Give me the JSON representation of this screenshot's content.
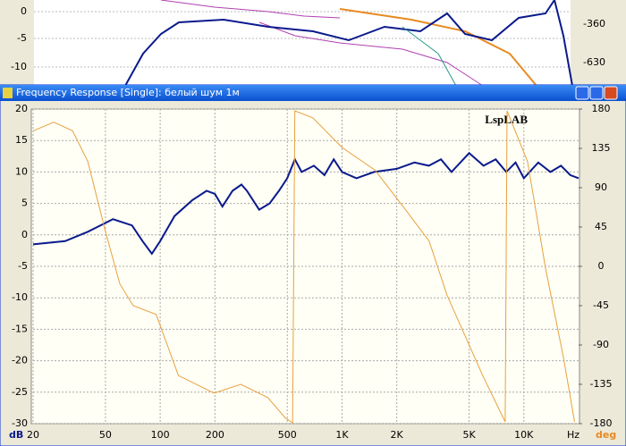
{
  "background_window": {
    "yticks": [
      "0",
      "-5",
      "-10"
    ],
    "y2ticks": [
      "-360",
      "-630"
    ]
  },
  "window": {
    "title": "Frequency Response [Single]: белый шум 1м"
  },
  "chart_data": {
    "type": "line",
    "annotation": "LspLAB",
    "xlabel": "Hz",
    "ylabel": "dB",
    "y2label": "deg",
    "log_x": true,
    "grid": true,
    "xlim": [
      20,
      20000
    ],
    "ylim": [
      -30,
      20
    ],
    "y2lim": [
      -180,
      180
    ],
    "xticks": [
      20,
      50,
      100,
      200,
      500,
      {
        "value": 1000,
        "label": "1K"
      },
      {
        "value": 2000,
        "label": "2K"
      },
      {
        "value": 5000,
        "label": "5K"
      },
      {
        "value": 10000,
        "label": "10K"
      }
    ],
    "yticks": [
      20,
      15,
      10,
      5,
      0,
      -5,
      -10,
      -15,
      -20,
      -25,
      -30
    ],
    "y2ticks": [
      180,
      135,
      90,
      45,
      0,
      -45,
      -90,
      -135,
      -180
    ],
    "series": [
      {
        "name": "dB",
        "color": "#0a1a8c",
        "width": 2,
        "x": [
          20,
          30,
          40,
          55,
          70,
          80,
          90,
          100,
          120,
          150,
          180,
          200,
          220,
          250,
          280,
          300,
          350,
          400,
          450,
          500,
          550,
          600,
          700,
          800,
          900,
          1000,
          1200,
          1500,
          2000,
          2500,
          3000,
          3500,
          4000,
          5000,
          6000,
          7000,
          8000,
          9000,
          10000,
          12000,
          14000,
          16000,
          18000,
          20000
        ],
        "values": [
          -1.5,
          -1,
          0.5,
          2.5,
          1.5,
          -1,
          -3,
          -1,
          3,
          5.5,
          7,
          6.5,
          4.5,
          7,
          8,
          7,
          4,
          5,
          7,
          9,
          12,
          10,
          11,
          9.5,
          12,
          10,
          9,
          10,
          10.5,
          11.5,
          11,
          12,
          10,
          13,
          11,
          12,
          10,
          11.5,
          9,
          11.5,
          10,
          11,
          9.5,
          9
        ]
      },
      {
        "name": "deg",
        "axis": "y2",
        "color": "#e8a040",
        "width": 1,
        "x": [
          20,
          26,
          33,
          40,
          50,
          60,
          71,
          95,
          126,
          198,
          278,
          390,
          490,
          535,
          550,
          690,
          1000,
          1520,
          2140,
          3010,
          3780,
          5940,
          7890,
          8080,
          10480,
          13150,
          16500,
          19000
        ],
        "values": [
          155,
          165,
          155,
          120,
          40,
          -20,
          -45,
          -55,
          -125,
          -145,
          -135,
          -150,
          -174,
          -179,
          178,
          170,
          136,
          110,
          70,
          29,
          -33,
          -125,
          -178,
          178,
          120,
          -2,
          -104,
          -178
        ]
      }
    ]
  }
}
